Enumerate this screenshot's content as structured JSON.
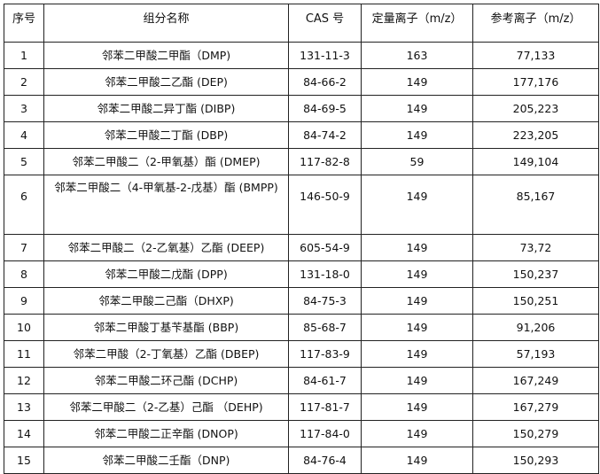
{
  "table": {
    "headers": [
      "序号",
      "组分名称",
      "CAS 号",
      "定量离子（m/z）",
      "参考离子（m/z）"
    ],
    "rows": [
      [
        "1",
        "邻苯二甲酸二甲酯（DMP)",
        "131-11-3",
        "163",
        "77,133"
      ],
      [
        "2",
        "邻苯二甲酸二乙酯 (DEP)",
        "84-66-2",
        "149",
        "177,176"
      ],
      [
        "3",
        "邻苯二甲酸二异丁酯 (DIBP)",
        "84-69-5",
        "149",
        "205,223"
      ],
      [
        "4",
        "邻苯二甲酸二丁酯 (DBP)",
        "84-74-2",
        "149",
        "223,205"
      ],
      [
        "5",
        "邻苯二甲酸二（2-甲氧基）酯 (DMEP)",
        "117-82-8",
        "59",
        "149,104"
      ],
      [
        "6",
        "邻苯二甲酸二（4-甲氧基-2-戊基）酯 (BMPP)",
        "146-50-9",
        "149",
        "85,167"
      ],
      [
        "7",
        "邻苯二甲酸二（2-乙氧基）乙酯 (DEEP)",
        "605-54-9",
        "149",
        "73,72"
      ],
      [
        "8",
        "邻苯二甲酸二戊酯 (DPP)",
        "131-18-0",
        "149",
        "150,237"
      ],
      [
        "9",
        "邻苯二甲酸二己酯（DHXP)",
        "84-75-3",
        "149",
        "150,251"
      ],
      [
        "10",
        "邻苯二甲酸丁基苄基酯 (BBP)",
        "85-68-7",
        "149",
        "91,206"
      ],
      [
        "11",
        "邻苯二甲酸（2-丁氧基）乙酯 (DBEP)",
        "117-83-9",
        "149",
        "57,193"
      ],
      [
        "12",
        "邻苯二甲酸二环己酯 (DCHP)",
        "84-61-7",
        "149",
        "167,249"
      ],
      [
        "13",
        "邻苯二甲酸二（2-乙基）己酯 （DEHP)",
        "117-81-7",
        "149",
        "167,279"
      ],
      [
        "14",
        "邻苯二甲酸二正辛酯 (DNOP)",
        "117-84-0",
        "149",
        "150,279"
      ],
      [
        "15",
        "邻苯二甲酸二壬酯（DNP)",
        "84-76-4",
        "149",
        "150,293"
      ]
    ]
  }
}
